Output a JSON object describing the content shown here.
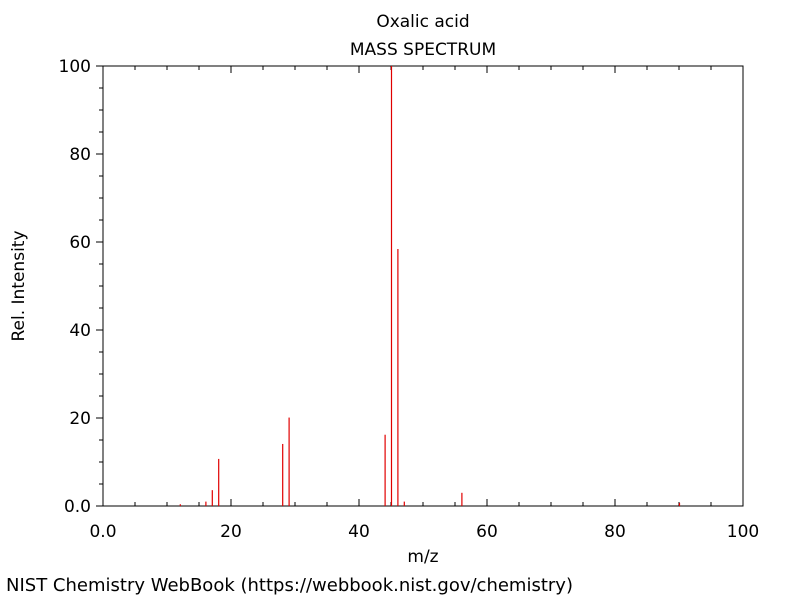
{
  "chart_data": {
    "type": "bar",
    "title": "Oxalic acid",
    "subtitle": "MASS SPECTRUM",
    "xlabel": "m/z",
    "ylabel": "Rel. Intensity",
    "xlim": [
      0,
      100
    ],
    "ylim": [
      0,
      100
    ],
    "x_ticks": [
      "0.0",
      "20",
      "40",
      "60",
      "80",
      "100"
    ],
    "y_ticks": [
      "0.0",
      "20",
      "40",
      "60",
      "80",
      "100"
    ],
    "grid": false,
    "color": "#e00000",
    "peaks": [
      {
        "mz": 12,
        "intensity": 0.4
      },
      {
        "mz": 16,
        "intensity": 1.0
      },
      {
        "mz": 17,
        "intensity": 3.6
      },
      {
        "mz": 18,
        "intensity": 10.7
      },
      {
        "mz": 28,
        "intensity": 14.1
      },
      {
        "mz": 29,
        "intensity": 20.1
      },
      {
        "mz": 44,
        "intensity": 16.2
      },
      {
        "mz": 45,
        "intensity": 100.0
      },
      {
        "mz": 46,
        "intensity": 58.4
      },
      {
        "mz": 47,
        "intensity": 1.0
      },
      {
        "mz": 56,
        "intensity": 3.0
      },
      {
        "mz": 90,
        "intensity": 0.7
      }
    ]
  },
  "footer": {
    "credit": "NIST Chemistry WebBook (https://webbook.nist.gov/chemistry)"
  }
}
